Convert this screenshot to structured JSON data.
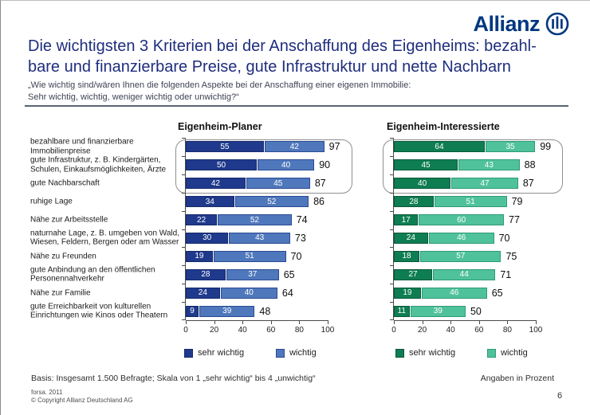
{
  "header": {
    "logo_text": "Allianz",
    "title_line1": "Die wichtigsten 3 Kriterien bei der Anschaffung des Eigenheims: bezahl-",
    "title_line2": "bare und finanzierbare Preise, gute Infrastruktur und nette Nachbarn",
    "subtitle_line1": "„Wie wichtig sind/wären Ihnen die folgenden Aspekte bei der Anschaffung einer eigenen Immobilie:",
    "subtitle_line2": "Sehr wichtig, wichtig, weniger wichtig oder unwichtig?“"
  },
  "chart_data": {
    "type": "bar",
    "orientation": "horizontal-stacked",
    "xlim": [
      0,
      100
    ],
    "x_ticks": [
      0,
      20,
      40,
      60,
      80,
      100
    ],
    "grid": false,
    "unit": "Prozent",
    "highlight_rows": [
      0,
      1,
      2
    ],
    "categories": [
      "bezahlbare und finanzierbare Immobilienpreise",
      "gute Infrastruktur, z. B. Kindergärten, Schulen, Einkaufsmöglichkeiten, Ärzte",
      "gute Nachbarschaft",
      "ruhige Lage",
      "Nähe zur Arbeitsstelle",
      "naturnahe Lage, z. B. umgeben von Wald, Wiesen, Feldern, Bergen oder am Wasser",
      "Nähe zu Freunden",
      "gute Anbindung an den öffentlichen Personennahverkehr",
      "Nähe zur Familie",
      "gute Erreichbarkeit von kulturellen Einrichtungen wie Kinos oder Theatern"
    ],
    "charts": [
      {
        "title": "Eigenheim-Planer",
        "palette": [
          "#1f3a8c",
          "#4f78bc"
        ],
        "borders": [
          "#15296a",
          "#2a4a94"
        ],
        "series": [
          {
            "name": "sehr wichtig",
            "values": [
              55,
              50,
              42,
              34,
              22,
              30,
              19,
              28,
              24,
              9
            ]
          },
          {
            "name": "wichtig",
            "values": [
              42,
              40,
              45,
              52,
              52,
              43,
              51,
              37,
              40,
              39
            ]
          }
        ],
        "totals": [
          97,
          90,
          87,
          86,
          74,
          73,
          70,
          65,
          64,
          48
        ]
      },
      {
        "title": "Eigenheim-Interessierte",
        "palette": [
          "#0e7e52",
          "#50c29b"
        ],
        "borders": [
          "#09583a",
          "#2d9b77"
        ],
        "series": [
          {
            "name": "sehr wichtig",
            "values": [
              64,
              45,
              40,
              28,
              17,
              24,
              18,
              27,
              19,
              11
            ]
          },
          {
            "name": "wichtig",
            "values": [
              35,
              43,
              47,
              51,
              60,
              46,
              57,
              44,
              46,
              39
            ]
          }
        ],
        "totals": [
          99,
          88,
          87,
          79,
          77,
          70,
          75,
          71,
          65,
          50
        ]
      }
    ]
  },
  "footer": {
    "basis": "Basis: Insgesamt 1.500 Befragte; Skala von 1 „sehr wichtig“ bis 4 „unwichtig“",
    "angaben": "Angaben in Prozent",
    "source_line1": "forsa. 2011",
    "source_line2": "© Copyright Allianz Deutschland AG",
    "page_number": "6"
  }
}
